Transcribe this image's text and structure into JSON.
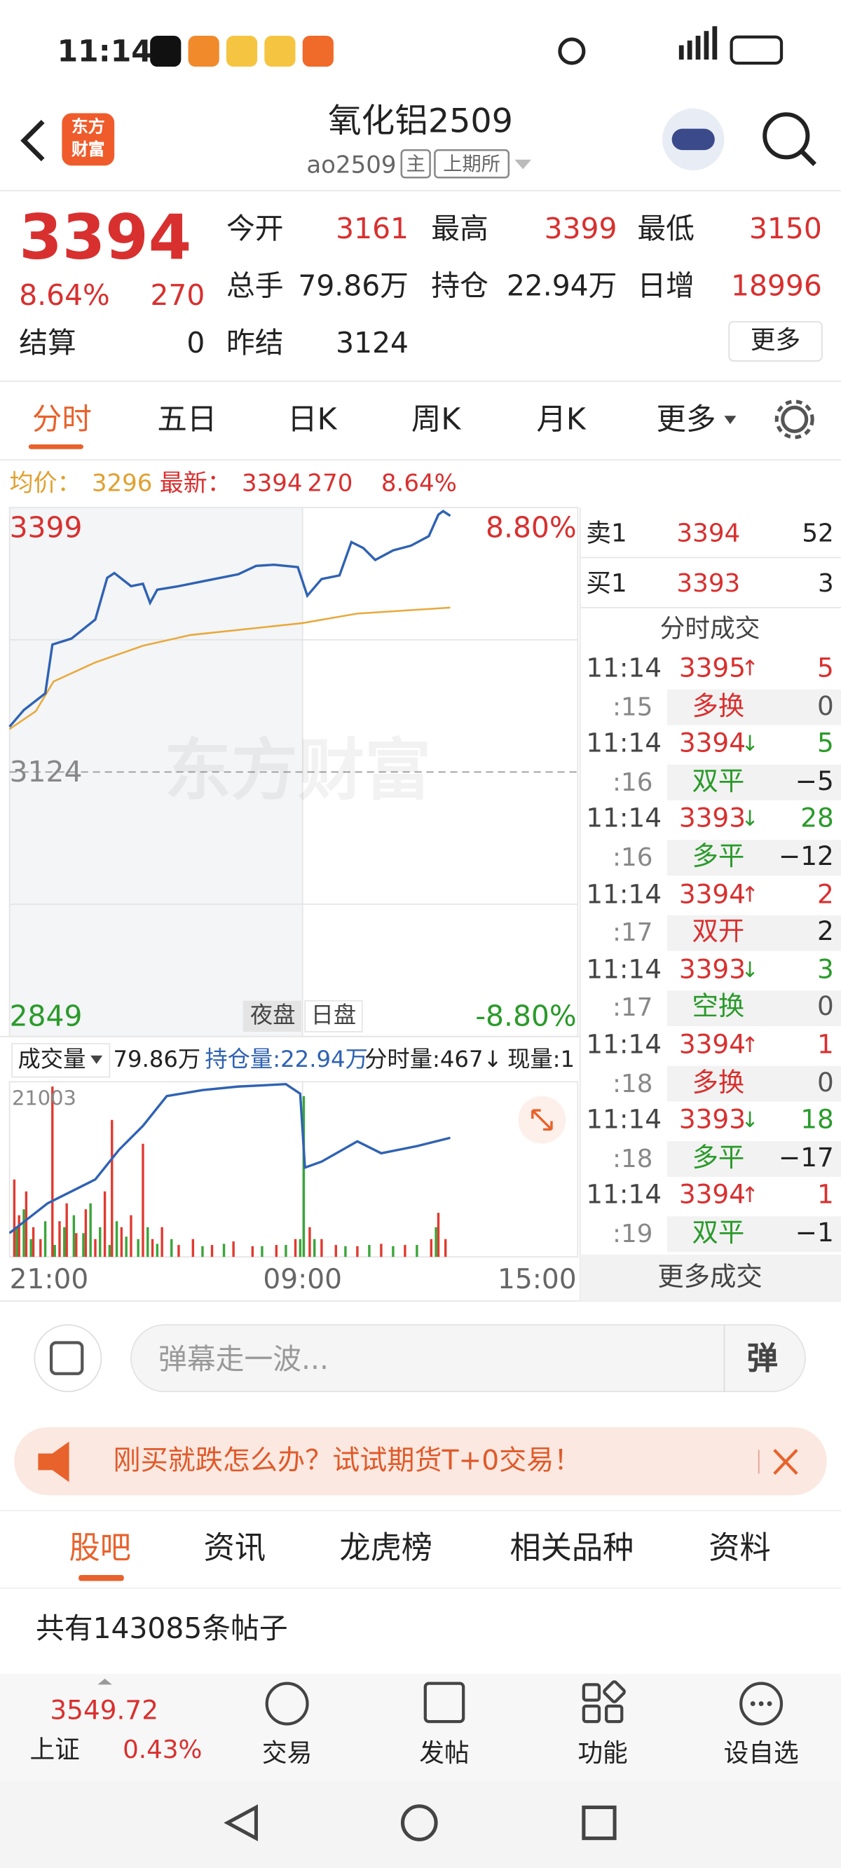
{
  "status_bar": {
    "time": "11:14"
  },
  "header": {
    "logo": [
      "东方",
      "财富"
    ],
    "title": "氧化铝2509",
    "code": "ao2509",
    "badges": [
      "主",
      "上期所"
    ]
  },
  "quote": {
    "price": "3394",
    "change_pct": "8.64%",
    "change": "270",
    "settle_label": "结算",
    "settle": "0",
    "fields": [
      {
        "label": "今开",
        "value": "3161"
      },
      {
        "label": "最高",
        "value": "3399"
      },
      {
        "label": "最低",
        "value": "3150"
      },
      {
        "label": "总手",
        "value": "79.86万"
      },
      {
        "label": "持仓",
        "value": "22.94万"
      },
      {
        "label": "日增",
        "value": "18996"
      },
      {
        "label": "昨结",
        "value": "3124"
      }
    ],
    "more": "更多"
  },
  "tabs": {
    "items": [
      "分时",
      "五日",
      "日K",
      "周K",
      "月K",
      "更多"
    ]
  },
  "summary": {
    "avg_label": "均价：",
    "avg": "3296",
    "latest_label": "最新：",
    "latest": "3394",
    "change": "270",
    "change_pct": "8.64%"
  },
  "chart": {
    "high": "3399",
    "high_pct": "8.80%",
    "base": "3124",
    "low": "2849",
    "low_pct": "-8.80%",
    "sessions": [
      "夜盘",
      "日盘"
    ],
    "watermark": "东方财富",
    "volume_menu": "成交量",
    "volume": "79.86万",
    "open_interest": "持仓量:22.94万",
    "tick_volume": "分时量:467↓",
    "current_volume": "现量:1",
    "volume_max": "21003",
    "times": [
      "21:00",
      "09:00",
      "15:00"
    ]
  },
  "order_book": {
    "ask": [
      "卖1",
      "3394",
      "52"
    ],
    "bid": [
      "买1",
      "3393",
      "3"
    ],
    "title": "分时成交",
    "trades": [
      {
        "time": "11:14",
        "price": "3395",
        "dir": "↑",
        "volume": "5",
        "second": ":15",
        "kind": "多换",
        "kind_color": "#d8302f",
        "kind_volume": "0"
      },
      {
        "time": "11:14",
        "price": "3394",
        "dir": "↓",
        "volume": "5",
        "second": ":16",
        "kind": "双平",
        "kind_color": "#2a9a2a",
        "kind_volume": "−5"
      },
      {
        "time": "11:14",
        "price": "3393",
        "dir": "↓",
        "volume": "28",
        "second": ":16",
        "kind": "多平",
        "kind_color": "#2a9a2a",
        "kind_volume": "−12"
      },
      {
        "time": "11:14",
        "price": "3394",
        "dir": "↑",
        "volume": "2",
        "second": ":17",
        "kind": "双开",
        "kind_color": "#d8302f",
        "kind_volume": "2"
      },
      {
        "time": "11:14",
        "price": "3393",
        "dir": "↓",
        "volume": "3",
        "second": ":17",
        "kind": "空换",
        "kind_color": "#2a9a2a",
        "kind_volume": "0"
      },
      {
        "time": "11:14",
        "price": "3394",
        "dir": "↑",
        "volume": "1",
        "second": ":18",
        "kind": "多换",
        "kind_color": "#d8302f",
        "kind_volume": "0"
      },
      {
        "time": "11:14",
        "price": "3393",
        "dir": "↓",
        "volume": "18",
        "second": ":18",
        "kind": "多平",
        "kind_color": "#2a9a2a",
        "kind_volume": "−17"
      },
      {
        "time": "11:14",
        "price": "3394",
        "dir": "↑",
        "volume": "1",
        "second": ":19",
        "kind": "双平",
        "kind_color": "#2a9a2a",
        "kind_volume": "−1"
      }
    ],
    "more": "更多成交"
  },
  "comment": {
    "placeholder": "弹幕走一波...",
    "button": "弹"
  },
  "banner": "刚买就跌怎么办？试试期货T+0交易！",
  "sections": {
    "items": [
      "股吧",
      "资讯",
      "龙虎榜",
      "相关品种",
      "资料"
    ]
  },
  "posts": "共有143085条帖子",
  "bottom_nav": {
    "index_value": "3549.72",
    "index_name": "上证",
    "index_change": "0.43%",
    "items": [
      "交易",
      "发帖",
      "功能",
      "设自选"
    ]
  }
}
